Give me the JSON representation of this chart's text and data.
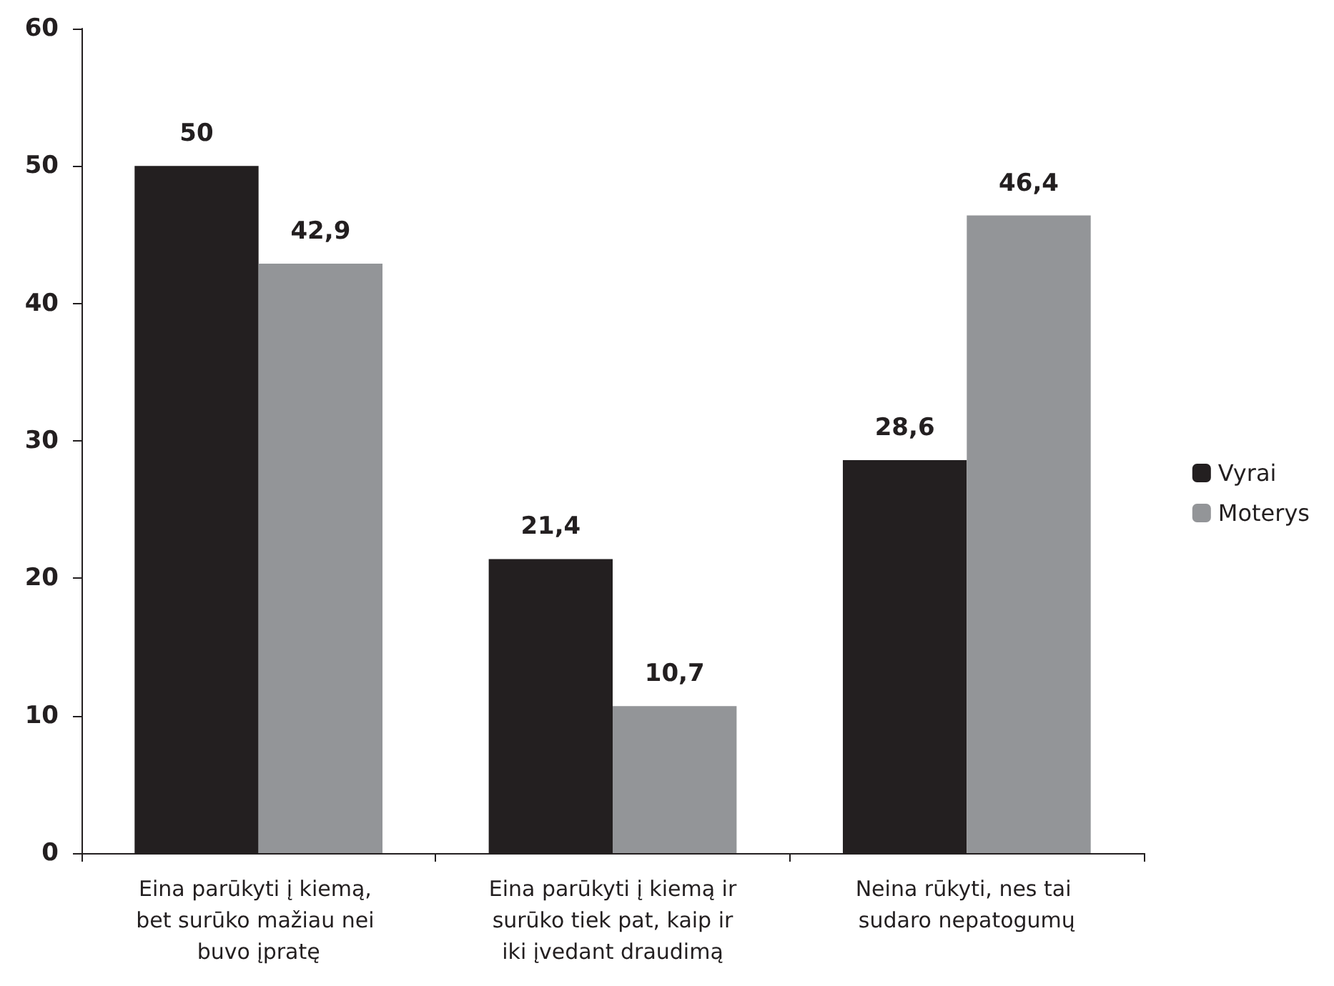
{
  "chart_data": {
    "type": "bar",
    "categories": [
      "Eina parūkyti į kiemą, bet surūko mažiau nei buvo įpratę",
      "Eina parūkyti į kiemą ir surūko tiek pat, kaip ir iki įvedant draudimą",
      "Neina rūkyti, nes tai sudaro nepatogumų"
    ],
    "series": [
      {
        "name": "Vyrai",
        "color": "#231f20",
        "values": [
          50,
          21.4,
          28.6
        ],
        "value_labels": [
          "50",
          "21,4",
          "28,6"
        ]
      },
      {
        "name": "Moterys",
        "color": "#939598",
        "values": [
          42.9,
          10.7,
          46.4
        ],
        "value_labels": [
          "42,9",
          "10,7",
          "46,4"
        ]
      }
    ],
    "ylim": [
      0,
      60
    ],
    "yticks": [
      0,
      10,
      20,
      30,
      40,
      50,
      60
    ],
    "grid": false,
    "legend": "right"
  }
}
